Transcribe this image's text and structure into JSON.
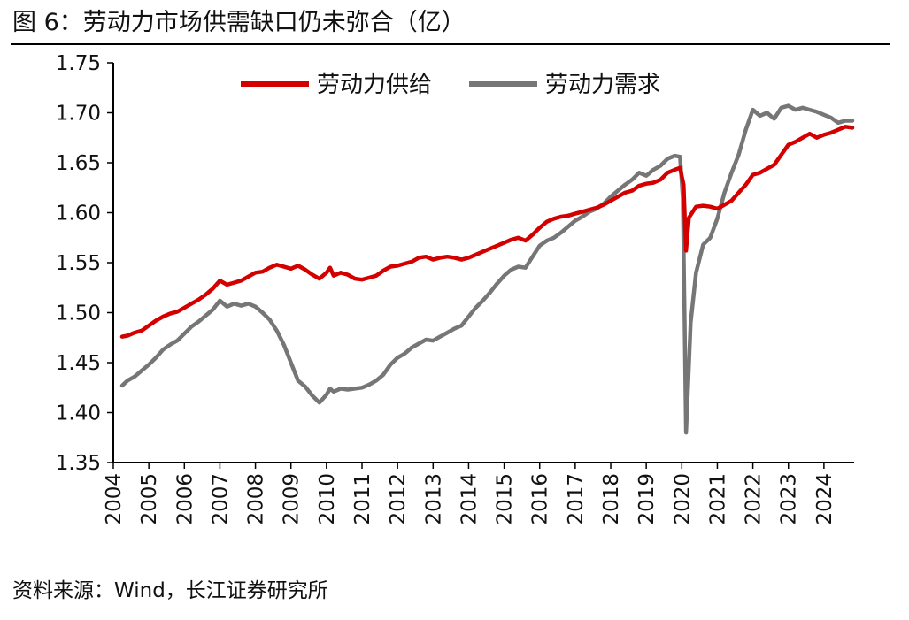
{
  "title": "图 6：劳动力市场供需缺口仍未弥合（亿）",
  "source": "资料来源：Wind，长江证券研究所",
  "colors": {
    "supply": "#d40000",
    "demand": "#767676",
    "axis": "#000000"
  },
  "chart_data": {
    "type": "line",
    "title": "劳动力市场供需缺口仍未弥合（亿）",
    "xlabel": "",
    "ylabel": "",
    "xlim": [
      2004.0,
      2024.85
    ],
    "ylim": [
      1.35,
      1.75
    ],
    "y_ticks": [
      "1.75",
      "1.70",
      "1.65",
      "1.60",
      "1.55",
      "1.50",
      "1.45",
      "1.40",
      "1.35"
    ],
    "x_ticks": [
      "2004",
      "2005",
      "2006",
      "2007",
      "2008",
      "2009",
      "2010",
      "2011",
      "2012",
      "2013",
      "2014",
      "2015",
      "2016",
      "2017",
      "2018",
      "2019",
      "2020",
      "2021",
      "2022",
      "2023",
      "2024"
    ],
    "grid": false,
    "legend_position": "top-center",
    "series": [
      {
        "name": "劳动力供给",
        "key": "supply",
        "points": [
          [
            2004.25,
            1.476
          ],
          [
            2004.4,
            1.477
          ],
          [
            2004.6,
            1.48
          ],
          [
            2004.8,
            1.482
          ],
          [
            2005.0,
            1.487
          ],
          [
            2005.2,
            1.492
          ],
          [
            2005.4,
            1.496
          ],
          [
            2005.6,
            1.499
          ],
          [
            2005.8,
            1.501
          ],
          [
            2006.0,
            1.505
          ],
          [
            2006.2,
            1.509
          ],
          [
            2006.4,
            1.513
          ],
          [
            2006.6,
            1.518
          ],
          [
            2006.8,
            1.524
          ],
          [
            2007.0,
            1.532
          ],
          [
            2007.2,
            1.528
          ],
          [
            2007.4,
            1.53
          ],
          [
            2007.6,
            1.532
          ],
          [
            2007.8,
            1.536
          ],
          [
            2008.0,
            1.54
          ],
          [
            2008.2,
            1.541
          ],
          [
            2008.4,
            1.545
          ],
          [
            2008.6,
            1.548
          ],
          [
            2008.8,
            1.546
          ],
          [
            2009.0,
            1.544
          ],
          [
            2009.2,
            1.547
          ],
          [
            2009.4,
            1.543
          ],
          [
            2009.6,
            1.538
          ],
          [
            2009.8,
            1.534
          ],
          [
            2010.0,
            1.54
          ],
          [
            2010.1,
            1.545
          ],
          [
            2010.2,
            1.537
          ],
          [
            2010.4,
            1.54
          ],
          [
            2010.6,
            1.538
          ],
          [
            2010.8,
            1.534
          ],
          [
            2011.0,
            1.533
          ],
          [
            2011.2,
            1.535
          ],
          [
            2011.4,
            1.537
          ],
          [
            2011.6,
            1.542
          ],
          [
            2011.8,
            1.546
          ],
          [
            2012.0,
            1.547
          ],
          [
            2012.2,
            1.549
          ],
          [
            2012.4,
            1.551
          ],
          [
            2012.6,
            1.555
          ],
          [
            2012.8,
            1.556
          ],
          [
            2013.0,
            1.553
          ],
          [
            2013.2,
            1.555
          ],
          [
            2013.4,
            1.556
          ],
          [
            2013.6,
            1.555
          ],
          [
            2013.8,
            1.553
          ],
          [
            2014.0,
            1.555
          ],
          [
            2014.2,
            1.558
          ],
          [
            2014.4,
            1.561
          ],
          [
            2014.6,
            1.564
          ],
          [
            2014.8,
            1.567
          ],
          [
            2015.0,
            1.57
          ],
          [
            2015.2,
            1.573
          ],
          [
            2015.4,
            1.575
          ],
          [
            2015.6,
            1.572
          ],
          [
            2015.8,
            1.578
          ],
          [
            2016.0,
            1.585
          ],
          [
            2016.2,
            1.591
          ],
          [
            2016.4,
            1.594
          ],
          [
            2016.6,
            1.596
          ],
          [
            2016.8,
            1.597
          ],
          [
            2017.0,
            1.599
          ],
          [
            2017.2,
            1.601
          ],
          [
            2017.4,
            1.603
          ],
          [
            2017.6,
            1.605
          ],
          [
            2017.8,
            1.608
          ],
          [
            2018.0,
            1.612
          ],
          [
            2018.2,
            1.616
          ],
          [
            2018.4,
            1.62
          ],
          [
            2018.6,
            1.622
          ],
          [
            2018.8,
            1.627
          ],
          [
            2019.0,
            1.629
          ],
          [
            2019.2,
            1.63
          ],
          [
            2019.4,
            1.633
          ],
          [
            2019.6,
            1.64
          ],
          [
            2019.8,
            1.643
          ],
          [
            2019.95,
            1.645
          ],
          [
            2020.05,
            1.628
          ],
          [
            2020.12,
            1.562
          ],
          [
            2020.2,
            1.595
          ],
          [
            2020.4,
            1.606
          ],
          [
            2020.6,
            1.607
          ],
          [
            2020.8,
            1.606
          ],
          [
            2021.0,
            1.604
          ],
          [
            2021.2,
            1.608
          ],
          [
            2021.4,
            1.612
          ],
          [
            2021.6,
            1.62
          ],
          [
            2021.8,
            1.628
          ],
          [
            2022.0,
            1.638
          ],
          [
            2022.2,
            1.64
          ],
          [
            2022.4,
            1.644
          ],
          [
            2022.6,
            1.648
          ],
          [
            2022.8,
            1.658
          ],
          [
            2023.0,
            1.668
          ],
          [
            2023.2,
            1.671
          ],
          [
            2023.4,
            1.675
          ],
          [
            2023.6,
            1.679
          ],
          [
            2023.8,
            1.675
          ],
          [
            2024.0,
            1.678
          ],
          [
            2024.2,
            1.68
          ],
          [
            2024.4,
            1.683
          ],
          [
            2024.6,
            1.686
          ],
          [
            2024.8,
            1.685
          ]
        ]
      },
      {
        "name": "劳动力需求",
        "key": "demand",
        "points": [
          [
            2004.25,
            1.427
          ],
          [
            2004.4,
            1.432
          ],
          [
            2004.6,
            1.436
          ],
          [
            2004.8,
            1.442
          ],
          [
            2005.0,
            1.448
          ],
          [
            2005.2,
            1.455
          ],
          [
            2005.4,
            1.463
          ],
          [
            2005.6,
            1.468
          ],
          [
            2005.8,
            1.472
          ],
          [
            2006.0,
            1.479
          ],
          [
            2006.2,
            1.486
          ],
          [
            2006.4,
            1.491
          ],
          [
            2006.6,
            1.497
          ],
          [
            2006.8,
            1.503
          ],
          [
            2007.0,
            1.512
          ],
          [
            2007.2,
            1.506
          ],
          [
            2007.4,
            1.509
          ],
          [
            2007.6,
            1.507
          ],
          [
            2007.8,
            1.509
          ],
          [
            2008.0,
            1.506
          ],
          [
            2008.2,
            1.5
          ],
          [
            2008.4,
            1.493
          ],
          [
            2008.6,
            1.482
          ],
          [
            2008.8,
            1.468
          ],
          [
            2009.0,
            1.45
          ],
          [
            2009.2,
            1.432
          ],
          [
            2009.4,
            1.426
          ],
          [
            2009.6,
            1.417
          ],
          [
            2009.8,
            1.41
          ],
          [
            2010.0,
            1.418
          ],
          [
            2010.1,
            1.424
          ],
          [
            2010.2,
            1.421
          ],
          [
            2010.4,
            1.424
          ],
          [
            2010.6,
            1.423
          ],
          [
            2010.8,
            1.424
          ],
          [
            2011.0,
            1.425
          ],
          [
            2011.2,
            1.428
          ],
          [
            2011.4,
            1.432
          ],
          [
            2011.6,
            1.438
          ],
          [
            2011.8,
            1.448
          ],
          [
            2012.0,
            1.455
          ],
          [
            2012.2,
            1.459
          ],
          [
            2012.4,
            1.465
          ],
          [
            2012.6,
            1.469
          ],
          [
            2012.8,
            1.473
          ],
          [
            2013.0,
            1.472
          ],
          [
            2013.2,
            1.476
          ],
          [
            2013.4,
            1.48
          ],
          [
            2013.6,
            1.484
          ],
          [
            2013.8,
            1.487
          ],
          [
            2014.0,
            1.496
          ],
          [
            2014.2,
            1.505
          ],
          [
            2014.4,
            1.512
          ],
          [
            2014.6,
            1.52
          ],
          [
            2014.8,
            1.529
          ],
          [
            2015.0,
            1.537
          ],
          [
            2015.2,
            1.543
          ],
          [
            2015.4,
            1.546
          ],
          [
            2015.6,
            1.545
          ],
          [
            2015.8,
            1.556
          ],
          [
            2016.0,
            1.567
          ],
          [
            2016.2,
            1.572
          ],
          [
            2016.4,
            1.575
          ],
          [
            2016.6,
            1.58
          ],
          [
            2016.8,
            1.586
          ],
          [
            2017.0,
            1.592
          ],
          [
            2017.2,
            1.596
          ],
          [
            2017.4,
            1.601
          ],
          [
            2017.6,
            1.604
          ],
          [
            2017.8,
            1.609
          ],
          [
            2018.0,
            1.616
          ],
          [
            2018.2,
            1.622
          ],
          [
            2018.4,
            1.628
          ],
          [
            2018.6,
            1.633
          ],
          [
            2018.8,
            1.64
          ],
          [
            2019.0,
            1.637
          ],
          [
            2019.2,
            1.643
          ],
          [
            2019.4,
            1.647
          ],
          [
            2019.6,
            1.654
          ],
          [
            2019.8,
            1.657
          ],
          [
            2019.95,
            1.656
          ],
          [
            2020.03,
            1.615
          ],
          [
            2020.08,
            1.49
          ],
          [
            2020.12,
            1.38
          ],
          [
            2020.18,
            1.43
          ],
          [
            2020.25,
            1.49
          ],
          [
            2020.4,
            1.54
          ],
          [
            2020.6,
            1.568
          ],
          [
            2020.8,
            1.575
          ],
          [
            2021.0,
            1.594
          ],
          [
            2021.2,
            1.62
          ],
          [
            2021.4,
            1.64
          ],
          [
            2021.6,
            1.658
          ],
          [
            2021.8,
            1.683
          ],
          [
            2022.0,
            1.703
          ],
          [
            2022.2,
            1.697
          ],
          [
            2022.4,
            1.7
          ],
          [
            2022.6,
            1.694
          ],
          [
            2022.8,
            1.705
          ],
          [
            2023.0,
            1.707
          ],
          [
            2023.2,
            1.703
          ],
          [
            2023.4,
            1.705
          ],
          [
            2023.6,
            1.703
          ],
          [
            2023.8,
            1.701
          ],
          [
            2024.0,
            1.698
          ],
          [
            2024.2,
            1.695
          ],
          [
            2024.4,
            1.69
          ],
          [
            2024.6,
            1.692
          ],
          [
            2024.8,
            1.692
          ]
        ]
      }
    ]
  }
}
